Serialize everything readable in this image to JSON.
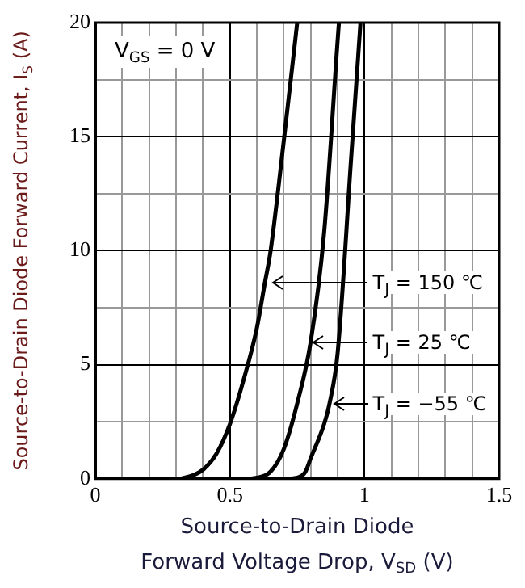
{
  "chart_data": {
    "type": "line",
    "xlabel": "Source-to-Drain Diode\nForward Voltage Drop, V$_{SD}$ (V)",
    "ylabel": "Source-to-Drain Diode Forward Current, I$_{S}$ (A)",
    "series": [
      {
        "color": "#000000",
        "x": [
          0,
          0.3,
          0.35,
          0.4,
          0.45,
          0.5,
          0.55,
          0.6,
          0.63,
          0.65,
          0.7,
          0.75
        ],
        "values": [
          0,
          0,
          0.1,
          0.4,
          1.1,
          2.4,
          4.3,
          6.6,
          8.6,
          9.9,
          14.8,
          20
        ]
      },
      {
        "color": "#000000",
        "x": [
          0,
          0.55,
          0.6,
          0.65,
          0.7,
          0.75,
          0.8,
          0.85,
          0.9,
          0.905
        ],
        "values": [
          0,
          0,
          0.05,
          0.3,
          1.3,
          3.3,
          6,
          10.8,
          19.2,
          20
        ]
      },
      {
        "color": "#000000",
        "x": [
          0,
          0.7,
          0.75,
          0.78,
          0.8,
          0.85,
          0.87,
          0.9,
          0.95,
          0.985
        ],
        "values": [
          0,
          0,
          0.05,
          0.3,
          0.9,
          2.4,
          3.3,
          5.5,
          14,
          20
        ]
      }
    ],
    "xlim": [
      0,
      1.5
    ],
    "ylim": [
      0,
      20
    ],
    "xticks": [
      0,
      {
        "value": 0.1,
        "label": null
      },
      {
        "value": 0.2,
        "label": null
      },
      {
        "value": 0.3,
        "label": null
      },
      {
        "value": 0.4,
        "label": null
      },
      0.5,
      {
        "value": 0.6,
        "label": null
      },
      {
        "value": 0.7,
        "label": null
      },
      {
        "value": 0.8,
        "label": null
      },
      {
        "value": 0.9,
        "label": null
      },
      1,
      {
        "value": 1.1,
        "label": null
      },
      {
        "value": 1.2,
        "label": null
      },
      {
        "value": 1.3,
        "label": null
      },
      {
        "value": 1.4,
        "label": null
      },
      1.5
    ],
    "yticks": [
      0,
      {
        "value": 2.5,
        "label": null
      },
      5,
      {
        "value": 7.5,
        "label": null
      },
      10,
      {
        "value": 12.5,
        "label": null
      },
      15,
      {
        "value": 17.5,
        "label": null
      },
      20
    ],
    "grid": true,
    "legend": false,
    "marker": "none",
    "line_style": "solid",
    "annotations": [
      "V$_{GS}$ = 0 V",
      "T$_{J}$ = 150 ℃",
      "T$_{J}$ = 25 ℃",
      "T$_{J}$ = −55 ℃"
    ]
  }
}
